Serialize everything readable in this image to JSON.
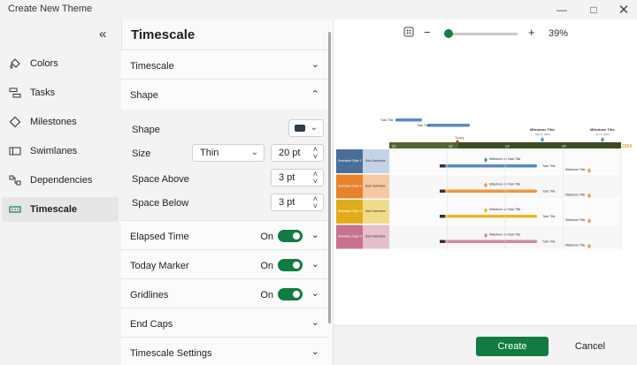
{
  "window": {
    "title": "Create New Theme",
    "minimize_icon": "minimize-icon",
    "maximize_icon": "maximize-icon",
    "close_icon": "close-icon"
  },
  "sidebar": {
    "collapse_icon": "double-chevron-left-icon",
    "items": [
      {
        "label": "Colors",
        "icon": "paint-bucket-icon",
        "active": false
      },
      {
        "label": "Tasks",
        "icon": "tasks-icon",
        "active": false
      },
      {
        "label": "Milestones",
        "icon": "diamond-icon",
        "active": false
      },
      {
        "label": "Swimlanes",
        "icon": "swimlanes-icon",
        "active": false
      },
      {
        "label": "Dependencies",
        "icon": "dependencies-icon",
        "active": false
      },
      {
        "label": "Timescale",
        "icon": "timescale-icon",
        "active": true
      }
    ]
  },
  "settings": {
    "title": "Timescale",
    "sections": {
      "timescale": {
        "label": "Timescale"
      },
      "shape": {
        "label": "Shape",
        "shape_label": "Shape",
        "shape_color": "#2f3b48",
        "size_label": "Size",
        "size_value": "Thin",
        "size_pt": "20 pt",
        "space_above_label": "Space Above",
        "space_above_value": "3 pt",
        "space_below_label": "Space Below",
        "space_below_value": "3 pt"
      },
      "elapsed_time": {
        "label": "Elapsed Time",
        "state": "On"
      },
      "today_marker": {
        "label": "Today Marker",
        "state": "On"
      },
      "gridlines": {
        "label": "Gridlines",
        "state": "On"
      },
      "end_caps": {
        "label": "End Caps"
      },
      "timescale_settings": {
        "label": "Timescale Settings"
      }
    }
  },
  "preview": {
    "zoom_percent": "39%",
    "zoom_fraction": 0.39,
    "tasks_top": [
      "Task Title",
      "Task Title"
    ],
    "milestones_top": [
      {
        "title": "Milestone Title",
        "date": "May 9, 2024"
      },
      {
        "title": "Milestone Title",
        "date": "Jun 4, 2024"
      }
    ],
    "year": "2024",
    "today_label": "Today",
    "quarters": [
      "Q1",
      "Q2",
      "Q3",
      "Q4"
    ],
    "swimlanes": [
      {
        "name": "Swimlane Style 1",
        "sub": "Sub-Swimlane",
        "color": "#4a6f97",
        "sub_color": "#c4d4e6",
        "bar_color": "#5c8bbf"
      },
      {
        "name": "Swimlane Style 2",
        "sub": "Sub-Swimlane",
        "color": "#e8822d",
        "sub_color": "#f6c9a1",
        "bar_color": "#f0963f"
      },
      {
        "name": "Swimlane Style 3",
        "sub": "Sub-Swimlane",
        "color": "#e0ac19",
        "sub_color": "#f1dc8a",
        "bar_color": "#e6b82a"
      },
      {
        "name": "Swimlane Style 4",
        "sub": "Sub-Swimlane",
        "color": "#c8728c",
        "sub_color": "#e6bfcc",
        "bar_color": "#cf88a0"
      }
    ],
    "task_title": "Task Title",
    "milestone_on_task": "Milestone on Task Title",
    "milestone_title": "Milestone Title",
    "timescale_color": "#3d4b23",
    "accent_color": "#e8a13a"
  },
  "footer": {
    "create_label": "Create",
    "cancel_label": "Cancel"
  },
  "colors": {
    "accent": "#107c41"
  }
}
